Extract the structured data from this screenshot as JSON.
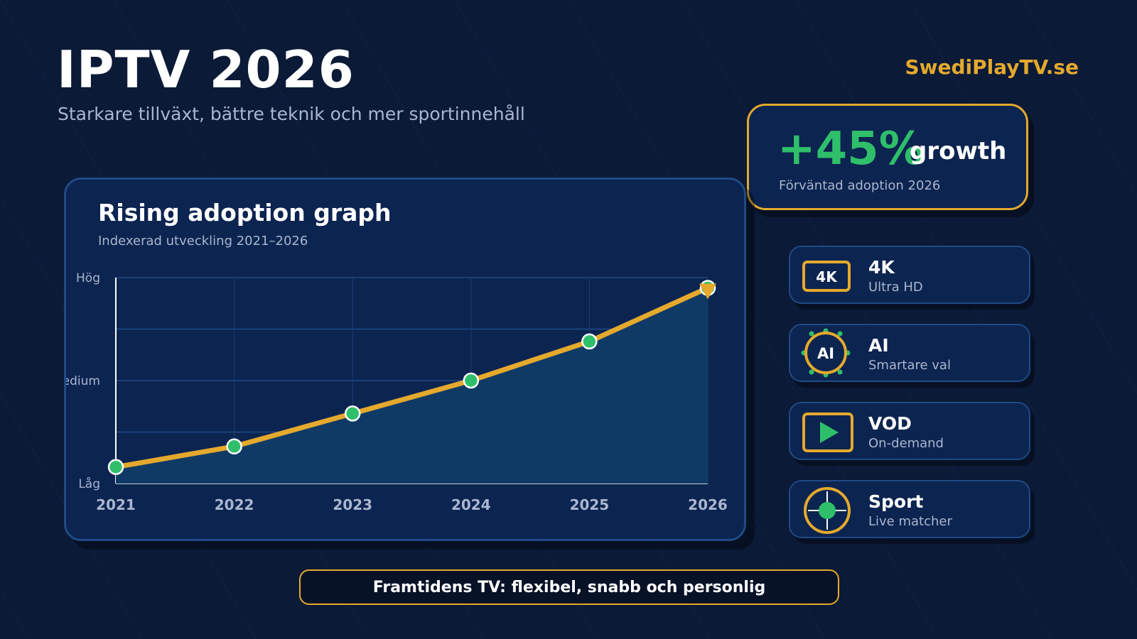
{
  "header": {
    "title": "IPTV 2026",
    "subtitle": "Starkare tillväxt, bättre teknik och mer sportinnehåll",
    "brand": "SwediPlayTV.se"
  },
  "growth_card": {
    "value": "+45%",
    "word": "growth",
    "caption": "Förväntad adoption 2026"
  },
  "features": [
    {
      "icon": "4k-icon",
      "icon_text": "4K",
      "title": "4K",
      "subtitle": "Ultra HD"
    },
    {
      "icon": "ai-icon",
      "icon_text": "AI",
      "title": "AI",
      "subtitle": "Smartare val"
    },
    {
      "icon": "play-icon",
      "title": "VOD",
      "subtitle": "On-demand"
    },
    {
      "icon": "sport-target-icon",
      "title": "Sport",
      "subtitle": "Live matcher"
    }
  ],
  "footer": {
    "text": "Framtidens TV: flexibel, snabb och personlig"
  },
  "colors": {
    "background": "#0b1a36",
    "card": "#0c2450",
    "accent_gold": "#e4a92d",
    "accent_green": "#2fbf6a",
    "area_fill": "#0f3a66"
  },
  "chart_data": {
    "type": "area",
    "title": "Rising adoption graph",
    "subtitle": "Indexerad utveckling 2021–2026",
    "categories": [
      "2021",
      "2022",
      "2023",
      "2024",
      "2025",
      "2026"
    ],
    "values": [
      8,
      18,
      34,
      50,
      69,
      95
    ],
    "ylim": [
      0,
      100
    ],
    "y_tick_labels": [
      {
        "value": 0,
        "label": "Låg"
      },
      {
        "value": 50,
        "label": "Medium"
      },
      {
        "value": 100,
        "label": "Hög"
      }
    ],
    "grid": true,
    "xlabel": "",
    "ylabel": ""
  }
}
